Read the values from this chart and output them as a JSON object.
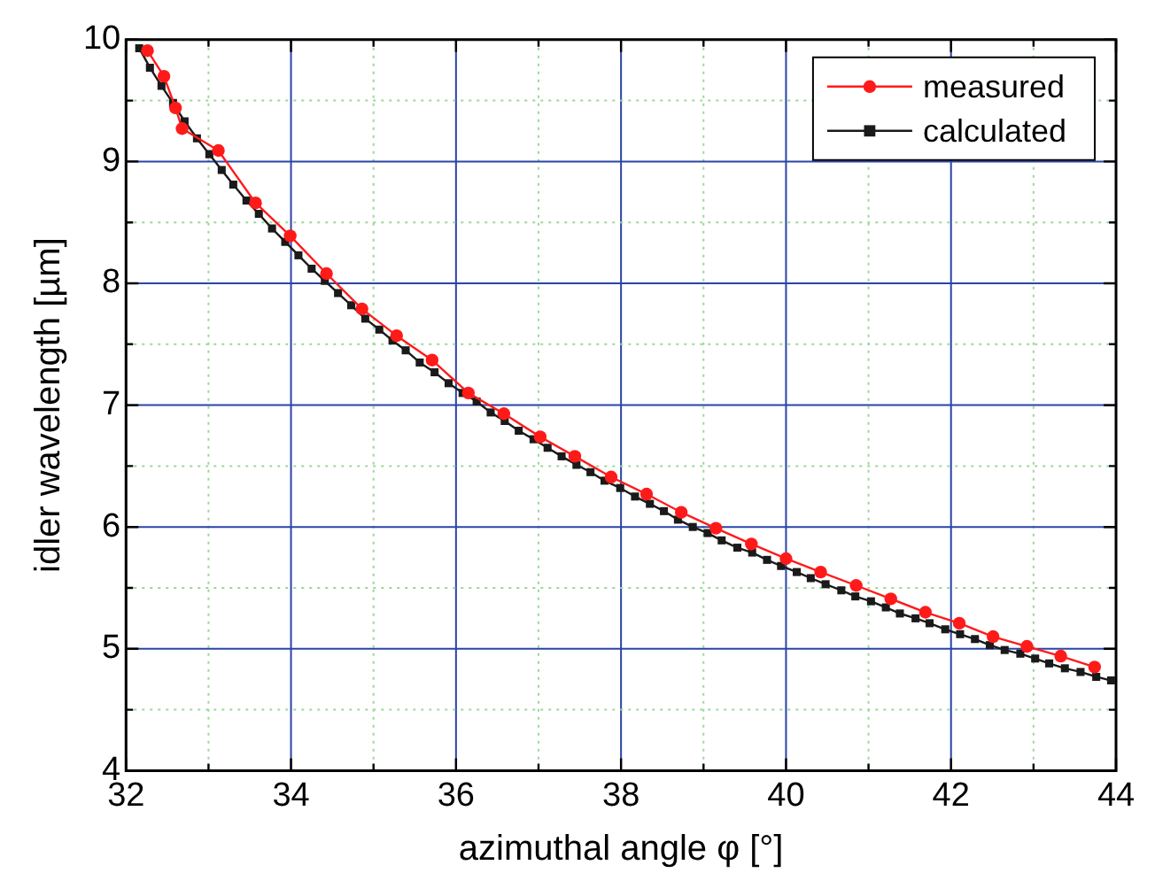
{
  "chart_data": {
    "type": "line",
    "xlabel": "azimuthal angle φ [°]",
    "ylabel": "idler wavelength [µm]",
    "xlim": [
      32,
      44
    ],
    "ylim": [
      4,
      10
    ],
    "xticks": [
      32,
      {
        "value": 33,
        "label": null
      },
      34,
      {
        "value": 35,
        "label": null
      },
      36,
      {
        "value": 37,
        "label": null
      },
      38,
      {
        "value": 39,
        "label": null
      },
      40,
      {
        "value": 41,
        "label": null
      },
      42,
      {
        "value": 43,
        "label": null
      },
      44
    ],
    "yticks": [
      4,
      {
        "value": 4.5,
        "label": null
      },
      5,
      {
        "value": 5.5,
        "label": null
      },
      6,
      {
        "value": 6.5,
        "label": null
      },
      7,
      {
        "value": 7.5,
        "label": null
      },
      8,
      {
        "value": 8.5,
        "label": null
      },
      9,
      {
        "value": 9.5,
        "label": null
      },
      10
    ],
    "grid": true,
    "legend": "top right",
    "line_style": "solid",
    "series": [
      {
        "name": "measured",
        "color": "#ff1a1a",
        "marker": "circle",
        "x": [
          32.26,
          32.46,
          32.6,
          32.68,
          33.12,
          33.57,
          33.99,
          34.43,
          34.86,
          35.28,
          35.71,
          36.15,
          36.58,
          37.02,
          37.44,
          37.88,
          38.31,
          38.73,
          39.15,
          39.58,
          40.0,
          40.42,
          40.85,
          41.27,
          41.69,
          42.1,
          42.51,
          42.92,
          43.33,
          43.74
        ],
        "values": [
          9.91,
          9.7,
          9.44,
          9.27,
          9.09,
          8.66,
          8.39,
          8.08,
          7.79,
          7.57,
          7.37,
          7.1,
          6.93,
          6.74,
          6.58,
          6.41,
          6.27,
          6.12,
          5.99,
          5.86,
          5.74,
          5.63,
          5.52,
          5.41,
          5.3,
          5.21,
          5.1,
          5.02,
          4.94,
          4.85
        ]
      },
      {
        "name": "calculated",
        "color": "#1a1a1a",
        "marker": "square",
        "x": [
          32.16,
          32.29,
          32.43,
          32.57,
          32.71,
          32.86,
          33.01,
          33.16,
          33.3,
          33.46,
          33.61,
          33.77,
          33.93,
          34.09,
          34.25,
          34.41,
          34.57,
          34.73,
          34.9,
          35.07,
          35.23,
          35.39,
          35.56,
          35.74,
          35.91,
          36.08,
          36.25,
          36.42,
          36.59,
          36.76,
          36.94,
          37.11,
          37.28,
          37.46,
          37.63,
          37.8,
          37.99,
          38.17,
          38.35,
          38.52,
          38.69,
          38.87,
          39.05,
          39.22,
          39.41,
          39.59,
          39.77,
          39.94,
          40.13,
          40.3,
          40.48,
          40.67,
          40.84,
          41.03,
          41.21,
          41.38,
          41.57,
          41.74,
          41.93,
          42.11,
          42.29,
          42.47,
          42.65,
          42.84,
          43.02,
          43.19,
          43.38,
          43.57,
          43.76,
          43.94
        ],
        "values": [
          9.93,
          9.77,
          9.62,
          9.48,
          9.33,
          9.19,
          9.06,
          8.93,
          8.81,
          8.68,
          8.57,
          8.45,
          8.34,
          8.23,
          8.12,
          8.02,
          7.92,
          7.82,
          7.71,
          7.62,
          7.53,
          7.45,
          7.35,
          7.27,
          7.18,
          7.1,
          7.03,
          6.94,
          6.87,
          6.79,
          6.72,
          6.65,
          6.58,
          6.51,
          6.45,
          6.38,
          6.32,
          6.25,
          6.19,
          6.13,
          6.06,
          6.0,
          5.95,
          5.89,
          5.83,
          5.79,
          5.73,
          5.68,
          5.63,
          5.58,
          5.53,
          5.48,
          5.43,
          5.39,
          5.34,
          5.29,
          5.25,
          5.21,
          5.16,
          5.12,
          5.08,
          5.03,
          4.99,
          4.96,
          4.92,
          4.88,
          4.84,
          4.81,
          4.77,
          4.74
        ]
      }
    ]
  }
}
